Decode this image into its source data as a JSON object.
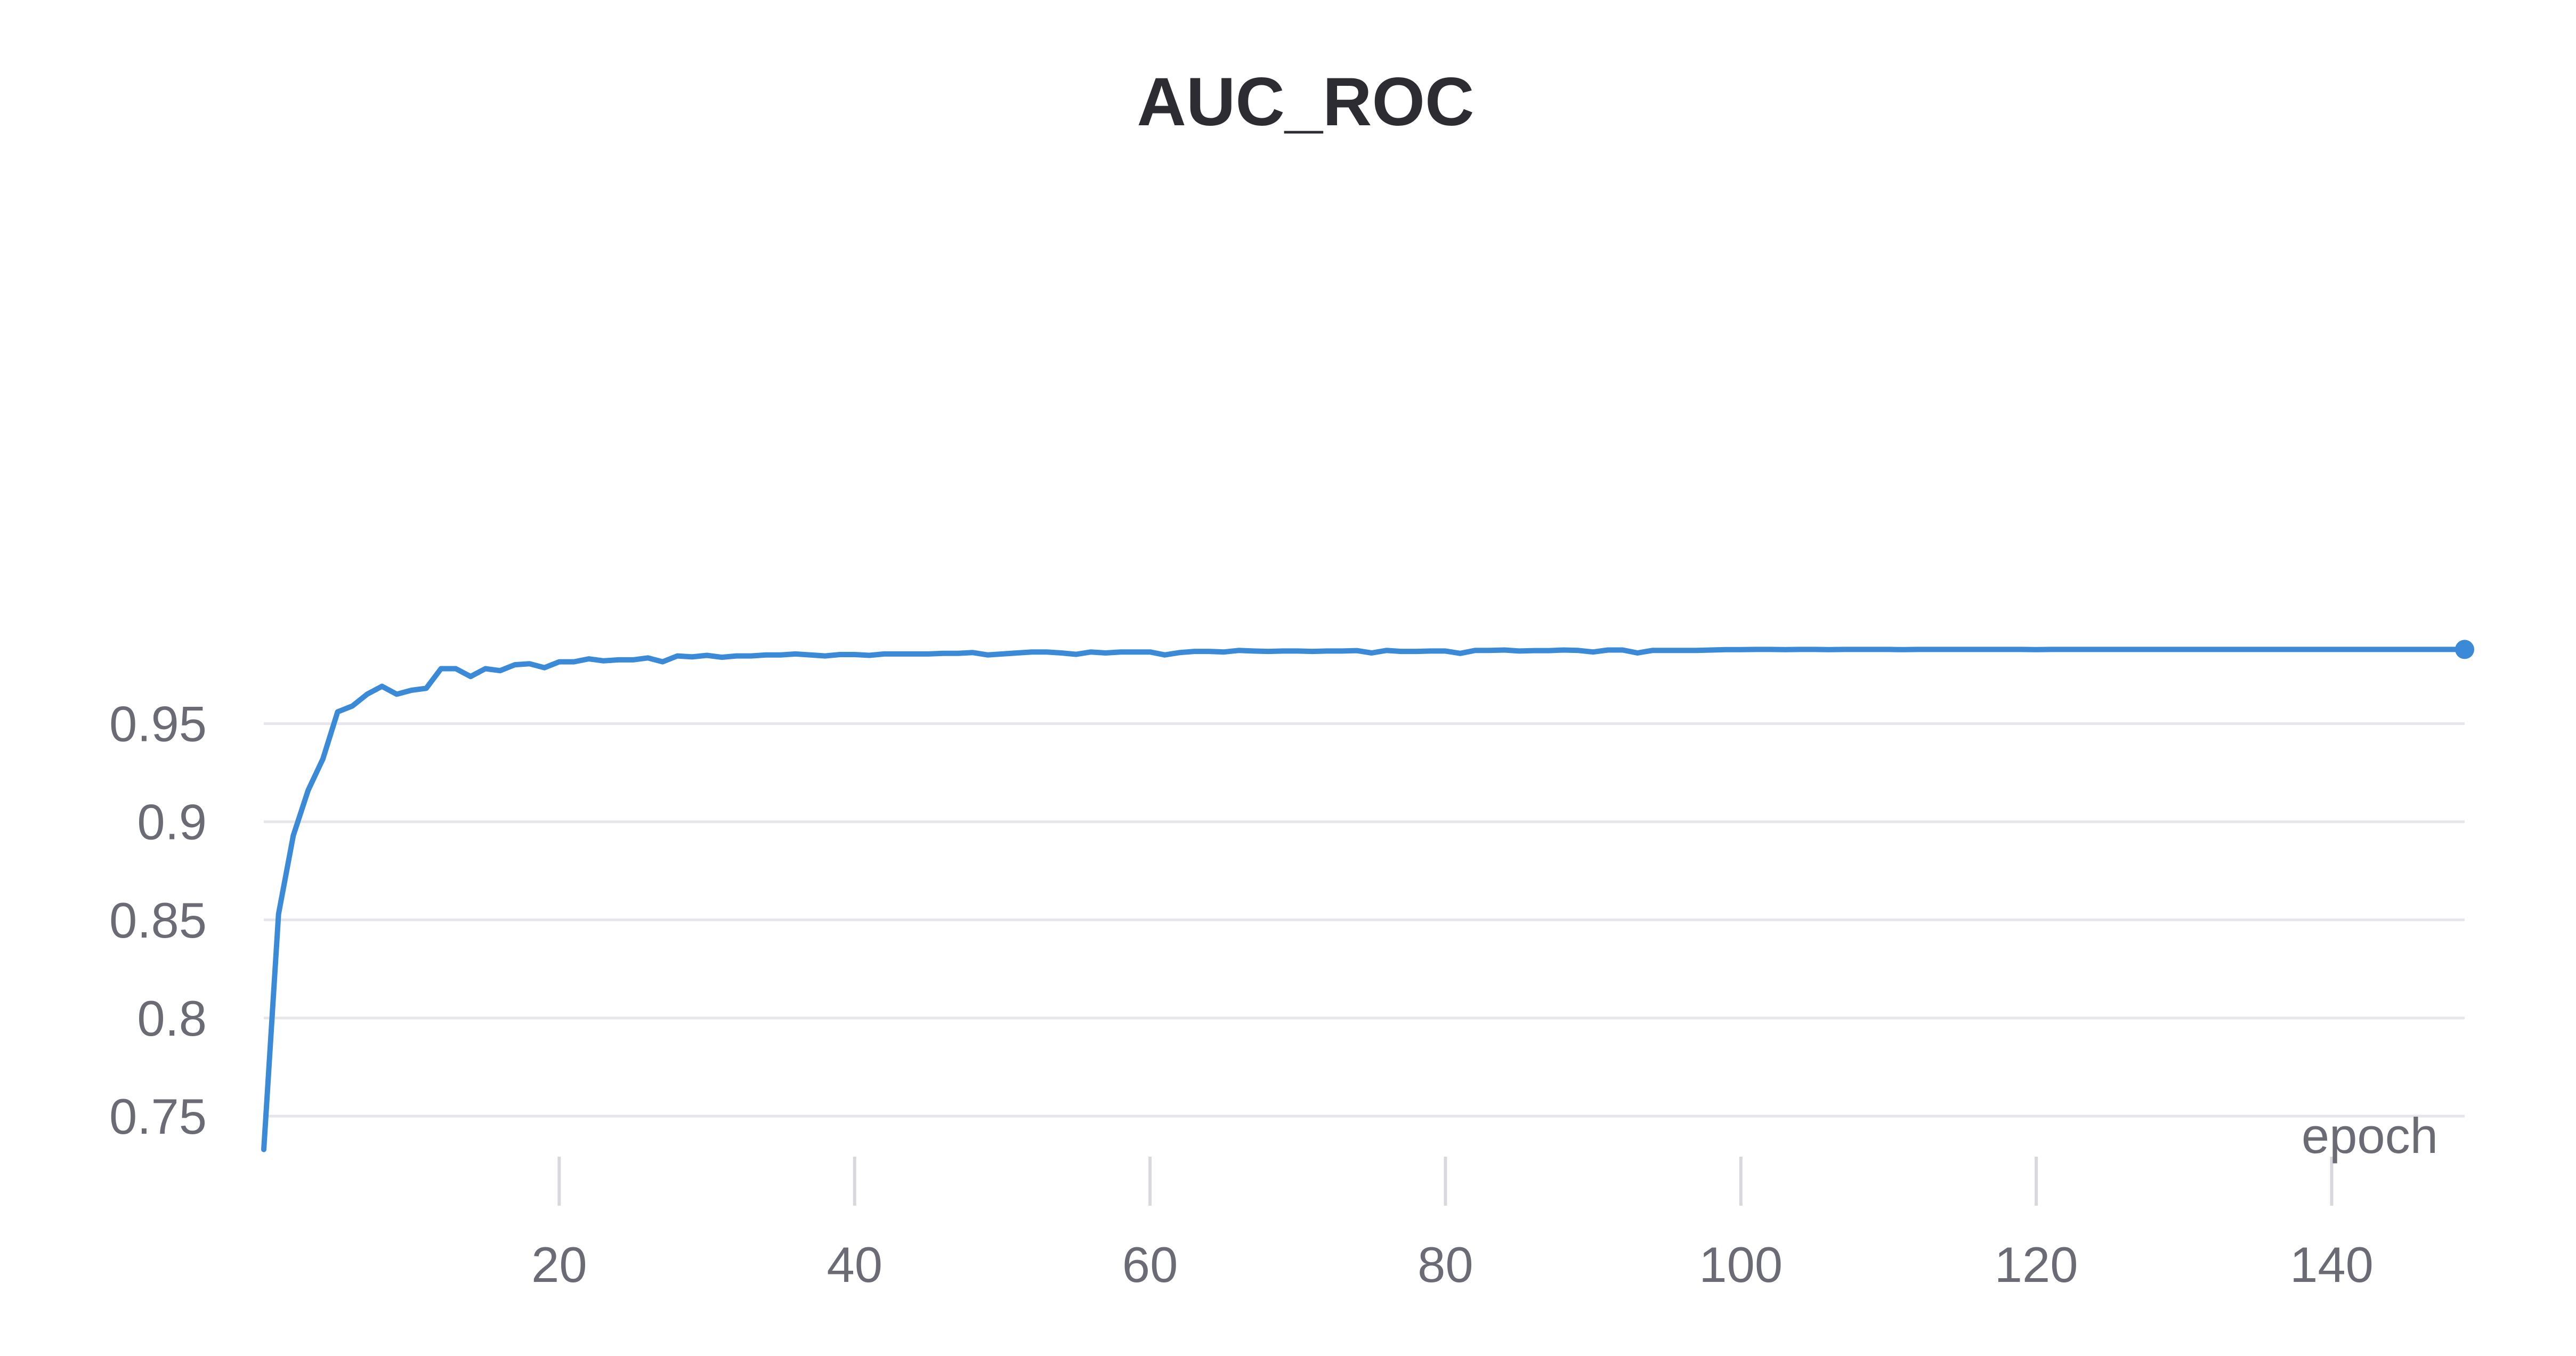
{
  "chart_data": {
    "type": "line",
    "title": "AUC_ROC",
    "xlabel": "epoch",
    "ylabel": "",
    "xlim": [
      0,
      150
    ],
    "ylim": [
      0.733,
      0.99
    ],
    "x_ticks": [
      20,
      40,
      60,
      80,
      100,
      120,
      140
    ],
    "x_tick_labels": [
      "20",
      "40",
      "60",
      "80",
      "100",
      "120",
      "140"
    ],
    "y_ticks": [
      0.75,
      0.8,
      0.85,
      0.9,
      0.95
    ],
    "y_tick_labels": [
      "0.75",
      "0.8",
      "0.85",
      "0.9",
      "0.95"
    ],
    "grid": "horizontal",
    "line_color": "#3b8ad8",
    "series": [
      {
        "x": [
          0,
          1,
          2,
          3,
          4,
          5,
          6,
          7,
          8,
          9,
          10,
          11,
          12,
          13,
          14,
          15,
          16,
          17,
          18,
          19,
          20,
          21,
          22,
          23,
          24,
          25,
          26,
          27,
          28,
          29,
          30,
          31,
          32,
          33,
          34,
          35,
          36,
          37,
          38,
          39,
          40,
          41,
          42,
          43,
          44,
          45,
          46,
          47,
          48,
          49,
          50,
          51,
          52,
          53,
          54,
          55,
          56,
          57,
          58,
          59,
          60,
          61,
          62,
          63,
          64,
          65,
          66,
          67,
          68,
          69,
          70,
          71,
          72,
          73,
          74,
          75,
          76,
          77,
          78,
          79,
          80,
          81,
          82,
          83,
          84,
          85,
          86,
          87,
          88,
          89,
          90,
          91,
          92,
          93,
          94,
          95,
          96,
          97,
          98,
          99,
          100,
          101,
          102,
          103,
          104,
          105,
          106,
          107,
          108,
          109,
          110,
          111,
          112,
          113,
          114,
          115,
          116,
          117,
          118,
          119,
          120,
          121,
          122,
          123,
          124,
          125,
          126,
          127,
          128,
          129,
          130,
          131,
          132,
          133,
          134,
          135,
          136,
          137,
          138,
          139,
          140,
          141,
          142,
          143,
          144,
          145,
          146,
          147,
          148,
          149
        ],
        "values": [
          0.733,
          0.853,
          0.893,
          0.916,
          0.932,
          0.956,
          0.959,
          0.965,
          0.969,
          0.965,
          0.967,
          0.968,
          0.978,
          0.978,
          0.974,
          0.978,
          0.977,
          0.98,
          0.9805,
          0.9785,
          0.9815,
          0.9815,
          0.983,
          0.982,
          0.9825,
          0.9825,
          0.9835,
          0.9815,
          0.9845,
          0.984,
          0.9848,
          0.9838,
          0.9845,
          0.9845,
          0.985,
          0.985,
          0.9855,
          0.985,
          0.9845,
          0.9852,
          0.9852,
          0.9848,
          0.9855,
          0.9855,
          0.9855,
          0.9855,
          0.9858,
          0.9858,
          0.9862,
          0.985,
          0.9855,
          0.986,
          0.9865,
          0.9865,
          0.986,
          0.9853,
          0.9865,
          0.986,
          0.9865,
          0.9865,
          0.9865,
          0.985,
          0.9862,
          0.9868,
          0.9868,
          0.9865,
          0.9873,
          0.987,
          0.9868,
          0.987,
          0.987,
          0.9868,
          0.987,
          0.987,
          0.9872,
          0.986,
          0.9873,
          0.9868,
          0.9868,
          0.987,
          0.987,
          0.9858,
          0.9873,
          0.9873,
          0.9875,
          0.987,
          0.9872,
          0.9872,
          0.9875,
          0.9873,
          0.9865,
          0.9875,
          0.9875,
          0.986,
          0.9873,
          0.9873,
          0.9873,
          0.9873,
          0.9875,
          0.9877,
          0.9877,
          0.9878,
          0.9878,
          0.9877,
          0.9878,
          0.9878,
          0.9877,
          0.9878,
          0.9878,
          0.9878,
          0.9878,
          0.9877,
          0.9878,
          0.9878,
          0.9878,
          0.9878,
          0.9878,
          0.9878,
          0.9878,
          0.9878,
          0.9877,
          0.9878,
          0.9878,
          0.9878,
          0.9878,
          0.9878,
          0.9878,
          0.9878,
          0.9878,
          0.9878,
          0.9878,
          0.9878,
          0.9878,
          0.9878,
          0.9878,
          0.9878,
          0.9878,
          0.9878,
          0.9878,
          0.9878,
          0.9878,
          0.9878,
          0.9878,
          0.9878,
          0.9878,
          0.9878,
          0.9878,
          0.9878,
          0.9878,
          0.9878
        ]
      }
    ]
  }
}
